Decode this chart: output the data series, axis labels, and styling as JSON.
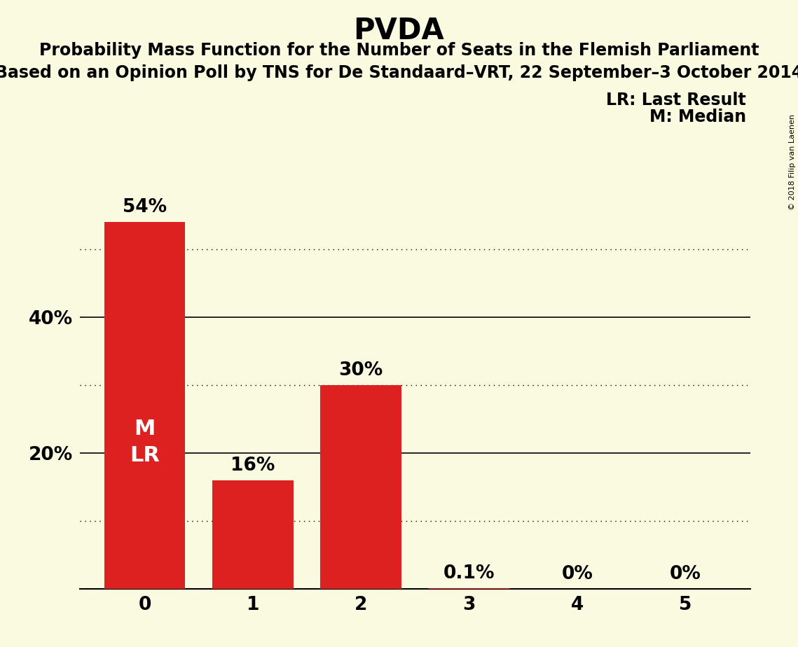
{
  "title": "PVDA",
  "subtitle1": "Probability Mass Function for the Number of Seats in the Flemish Parliament",
  "subtitle2": "Based on an Opinion Poll by TNS for De Standaard–VRT, 22 September–3 October 2014",
  "watermark": "© 2018 Filip van Laenen",
  "categories": [
    0,
    1,
    2,
    3,
    4,
    5
  ],
  "values": [
    54,
    16,
    30,
    0.1,
    0,
    0
  ],
  "labels": [
    "54%",
    "16%",
    "30%",
    "0.1%",
    "0%",
    "0%"
  ],
  "bar_color": "#dd2020",
  "background_color": "#fafae0",
  "ylim": [
    0,
    60
  ],
  "solid_gridlines": [
    20,
    40
  ],
  "dotted_gridlines": [
    10,
    30,
    50
  ],
  "legend_lr": "LR: Last Result",
  "legend_m": "M: Median",
  "inside_label": "M\nLR",
  "inside_label_bar": 0,
  "title_fontsize": 30,
  "subtitle_fontsize": 17,
  "label_fontsize": 19,
  "axis_fontsize": 19,
  "legend_fontsize": 17,
  "inside_fontsize": 22,
  "watermark_fontsize": 8,
  "bar_width": 0.75
}
